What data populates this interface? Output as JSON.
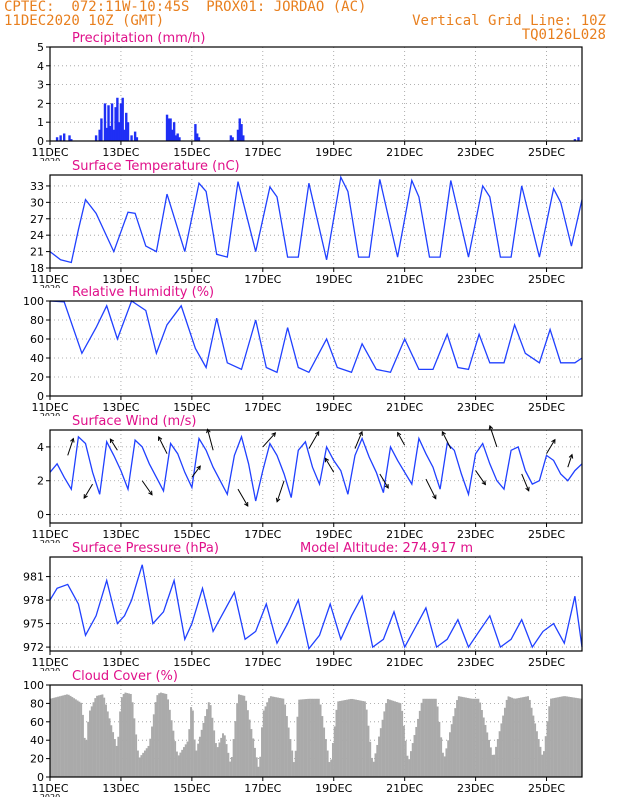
{
  "header": {
    "line1_left": "CPTEC:  072:11W-10:45S  PROX01: JORDAO (AC)",
    "line2_left": "11DEC2020 10Z (GMT)",
    "line2_right": "Vertical Grid Line: 10Z",
    "line3_right": "TQ0126L028",
    "color": "#e87f1e"
  },
  "x_axis": {
    "ticks": [
      "11DEC",
      "13DEC",
      "15DEC",
      "17DEC",
      "19DEC",
      "21DEC",
      "23DEC",
      "25DEC"
    ],
    "tick_days": [
      0,
      2,
      4,
      6,
      8,
      10,
      12,
      14
    ],
    "year_label": "2020",
    "range_days": [
      0,
      15
    ]
  },
  "panels": [
    {
      "id": "precip",
      "title": "Precipitation (mm/h)",
      "type": "bar",
      "ylim": [
        0,
        5
      ],
      "yticks": [
        0,
        1,
        2,
        3,
        4,
        5
      ],
      "color": "#1f2ff5"
    },
    {
      "id": "temp",
      "title": "Surface Temperature (nC)",
      "type": "line",
      "ylim": [
        18,
        35
      ],
      "yticks": [
        18,
        21,
        24,
        27,
        30,
        33
      ],
      "color": "#2040ff"
    },
    {
      "id": "rh",
      "title": "Relative Humidity (%)",
      "type": "line",
      "ylim": [
        0,
        100
      ],
      "yticks": [
        0,
        20,
        40,
        60,
        80,
        100
      ],
      "color": "#2040ff"
    },
    {
      "id": "wind",
      "title": "Surface Wind (m/s)",
      "type": "line",
      "ylim": [
        -0.5,
        5
      ],
      "yticks": [
        0,
        2,
        4
      ],
      "color": "#2040ff"
    },
    {
      "id": "pres",
      "title": "Surface Pressure (hPa)",
      "extra": "Model Altitude: 274.917 m",
      "type": "line",
      "ylim": [
        971.5,
        983.5
      ],
      "yticks": [
        972,
        975,
        978,
        981
      ],
      "color": "#2040ff"
    },
    {
      "id": "cloud",
      "title": "Cloud Cover (%)",
      "type": "area",
      "ylim": [
        0,
        100
      ],
      "yticks": [
        0,
        20,
        40,
        60,
        80,
        100
      ],
      "color": "#aaaaaa"
    }
  ],
  "chart_data": [
    {
      "type": "bar",
      "title": "Precipitation (mm/h)",
      "x_unit": "days since 11DEC2020 10Z",
      "x": [
        0.2,
        0.3,
        0.4,
        0.55,
        0.6,
        1.3,
        1.4,
        1.45,
        1.55,
        1.6,
        1.65,
        1.7,
        1.75,
        1.8,
        1.85,
        1.9,
        1.95,
        2.0,
        2.05,
        2.1,
        2.15,
        2.2,
        2.3,
        2.4,
        2.45,
        3.3,
        3.35,
        3.4,
        3.45,
        3.5,
        3.55,
        3.6,
        3.65,
        4.1,
        4.15,
        4.2,
        5.1,
        5.15,
        5.3,
        5.35,
        5.4,
        5.45,
        14.8,
        14.9
      ],
      "values": [
        0.2,
        0.3,
        0.4,
        0.3,
        0.1,
        0.3,
        0.6,
        1.2,
        2.0,
        0.7,
        1.9,
        0.8,
        2.0,
        0.6,
        1.8,
        2.3,
        1.0,
        2.0,
        2.3,
        0.6,
        1.5,
        1.0,
        0.3,
        0.5,
        0.2,
        1.4,
        1.2,
        1.2,
        0.6,
        1.0,
        0.3,
        0.4,
        0.2,
        0.9,
        0.4,
        0.2,
        0.3,
        0.2,
        0.6,
        1.2,
        0.9,
        0.3,
        0.1,
        0.2
      ],
      "ylim": [
        0,
        5
      ]
    },
    {
      "type": "line",
      "title": "Surface Temperature (nC)",
      "x": [
        0,
        0.3,
        0.6,
        0.8,
        1.0,
        1.3,
        1.8,
        2.2,
        2.4,
        2.7,
        3.0,
        3.3,
        3.8,
        4.2,
        4.4,
        4.7,
        5.0,
        5.3,
        5.8,
        6.2,
        6.4,
        6.7,
        7.0,
        7.3,
        7.8,
        8.2,
        8.4,
        8.7,
        9.0,
        9.3,
        9.8,
        10.2,
        10.4,
        10.7,
        11.0,
        11.3,
        11.8,
        12.2,
        12.4,
        12.7,
        13.0,
        13.3,
        13.8,
        14.2,
        14.4,
        14.7,
        15.0
      ],
      "values": [
        21,
        19.5,
        19,
        25,
        30.5,
        28,
        21,
        28.2,
        28,
        22,
        21,
        31.5,
        21,
        33.5,
        32,
        20.5,
        20,
        33.8,
        21,
        32.8,
        31,
        20,
        20,
        33.5,
        19.5,
        34.6,
        32,
        20,
        20,
        34.2,
        20,
        34,
        31,
        20,
        20,
        34,
        20,
        33,
        31,
        20,
        20,
        33,
        20,
        32.5,
        30,
        22,
        30.5
      ],
      "ylim": [
        18,
        35
      ]
    },
    {
      "type": "line",
      "title": "Relative Humidity (%)",
      "x": [
        0,
        0.4,
        0.9,
        1.3,
        1.6,
        1.9,
        2.3,
        2.7,
        3.0,
        3.3,
        3.7,
        4.1,
        4.4,
        4.7,
        5.0,
        5.4,
        5.8,
        6.1,
        6.4,
        6.7,
        7.0,
        7.3,
        7.8,
        8.1,
        8.5,
        8.8,
        9.2,
        9.6,
        10.0,
        10.4,
        10.8,
        11.2,
        11.5,
        11.8,
        12.1,
        12.4,
        12.8,
        13.1,
        13.4,
        13.8,
        14.1,
        14.4,
        14.8,
        15.0
      ],
      "values": [
        100,
        99,
        45,
        72,
        95,
        60,
        100,
        90,
        45,
        75,
        95,
        50,
        30,
        82,
        35,
        28,
        80,
        30,
        25,
        72,
        30,
        25,
        60,
        30,
        25,
        55,
        28,
        25,
        60,
        28,
        28,
        65,
        30,
        28,
        65,
        35,
        35,
        75,
        45,
        35,
        70,
        35,
        35,
        40
      ],
      "ylim": [
        0,
        100
      ]
    },
    {
      "type": "line",
      "title": "Surface Wind (m/s)",
      "x": [
        0,
        0.2,
        0.4,
        0.6,
        0.8,
        1.0,
        1.2,
        1.4,
        1.6,
        1.8,
        2.0,
        2.2,
        2.4,
        2.6,
        2.8,
        3.0,
        3.2,
        3.4,
        3.6,
        3.8,
        4.0,
        4.2,
        4.4,
        4.6,
        4.8,
        5.0,
        5.2,
        5.4,
        5.6,
        5.8,
        6.0,
        6.2,
        6.4,
        6.6,
        6.8,
        7.0,
        7.2,
        7.4,
        7.6,
        7.8,
        8.0,
        8.2,
        8.4,
        8.6,
        8.8,
        9.0,
        9.2,
        9.4,
        9.6,
        9.8,
        10.0,
        10.2,
        10.4,
        10.6,
        10.8,
        11.0,
        11.2,
        11.4,
        11.6,
        11.8,
        12.0,
        12.2,
        12.4,
        12.6,
        12.8,
        13.0,
        13.2,
        13.4,
        13.6,
        13.8,
        14.0,
        14.2,
        14.4,
        14.6,
        14.8,
        15.0
      ],
      "values": [
        2.5,
        3.0,
        2.2,
        1.5,
        4.6,
        4.2,
        2.5,
        1.2,
        4.3,
        3.5,
        2.6,
        1.5,
        4.4,
        4.0,
        3.0,
        2.2,
        1.4,
        4.2,
        3.6,
        2.5,
        1.6,
        4.5,
        3.8,
        2.8,
        2.0,
        1.2,
        3.5,
        4.6,
        3.0,
        0.8,
        2.6,
        4.2,
        3.5,
        2.4,
        1.0,
        3.8,
        4.3,
        2.8,
        1.8,
        4.0,
        3.2,
        2.6,
        1.2,
        3.5,
        4.5,
        3.4,
        2.5,
        1.3,
        4.0,
        3.2,
        2.5,
        1.8,
        4.5,
        3.6,
        2.8,
        1.5,
        4.2,
        3.8,
        2.4,
        1.2,
        3.6,
        4.2,
        3.0,
        2.0,
        1.5,
        3.8,
        4.0,
        2.6,
        1.8,
        2.0,
        3.5,
        3.2,
        2.4,
        2.0,
        2.6,
        3.0
      ],
      "ylim": [
        -0.5,
        5
      ],
      "arrows": {
        "x": [
          0.5,
          1.2,
          1.9,
          2.6,
          3.3,
          4.0,
          4.6,
          5.3,
          6.0,
          6.6,
          7.3,
          8.0,
          8.6,
          9.3,
          10.0,
          10.6,
          11.3,
          12.0,
          12.6,
          13.3,
          14.0,
          14.6
        ],
        "y": [
          3.5,
          1.8,
          3.8,
          2.0,
          3.6,
          2.2,
          3.8,
          1.5,
          4.0,
          2.0,
          3.9,
          2.5,
          3.9,
          2.4,
          4.1,
          2.1,
          3.9,
          2.6,
          4.0,
          2.4,
          3.6,
          2.8
        ],
        "u": [
          0.4,
          -0.6,
          -0.5,
          0.7,
          -0.6,
          0.6,
          -0.4,
          0.7,
          0.9,
          -0.5,
          0.7,
          -0.6,
          0.5,
          0.6,
          -0.5,
          0.7,
          -0.6,
          0.7,
          -0.5,
          0.5,
          0.6,
          0.3
        ],
        "v": [
          1.2,
          -1.0,
          0.8,
          -1.0,
          1.2,
          0.8,
          1.5,
          -1.2,
          1.0,
          -1.5,
          1.2,
          1.0,
          1.2,
          -1.0,
          0.9,
          -1.4,
          1.2,
          -1.0,
          1.5,
          -1.2,
          1.0,
          0.9
        ]
      }
    },
    {
      "type": "line",
      "title": "Surface Pressure (hPa)",
      "x": [
        0,
        0.2,
        0.5,
        0.8,
        1.0,
        1.3,
        1.6,
        1.9,
        2.1,
        2.3,
        2.6,
        2.9,
        3.2,
        3.5,
        3.8,
        4.0,
        4.3,
        4.6,
        4.9,
        5.2,
        5.5,
        5.8,
        6.1,
        6.4,
        6.7,
        7.0,
        7.3,
        7.6,
        7.9,
        8.2,
        8.5,
        8.8,
        9.1,
        9.4,
        9.7,
        10.0,
        10.3,
        10.6,
        10.9,
        11.2,
        11.5,
        11.8,
        12.1,
        12.4,
        12.7,
        13.0,
        13.3,
        13.6,
        13.9,
        14.2,
        14.5,
        14.8,
        15.0
      ],
      "values": [
        978,
        979.5,
        980,
        977.5,
        973.5,
        976,
        980.5,
        975,
        976,
        978,
        982.5,
        975,
        976.5,
        980.5,
        973,
        975,
        979.5,
        974,
        976.5,
        979,
        973,
        974,
        977.5,
        972.5,
        975,
        978,
        971.8,
        973.5,
        977.5,
        973,
        976,
        978.5,
        972,
        973,
        976.5,
        972,
        974.5,
        977,
        972,
        973,
        975.5,
        972,
        974,
        976,
        972,
        973,
        975.5,
        972,
        974,
        975,
        972.5,
        978.5,
        972
      ],
      "ylim": [
        971.5,
        983.5
      ]
    },
    {
      "type": "area",
      "title": "Cloud Cover (%)",
      "ylim": [
        0,
        100
      ],
      "x": [
        0,
        0.5,
        0.9,
        1.0,
        1.1,
        1.3,
        1.5,
        1.9,
        2.0,
        2.1,
        2.3,
        2.5,
        2.8,
        3.0,
        3.1,
        3.3,
        3.6,
        3.9,
        4.0,
        4.1,
        4.5,
        4.7,
        4.9,
        5.1,
        5.3,
        5.5,
        5.9,
        6.0,
        6.2,
        6.6,
        6.9,
        7.0,
        7.3,
        7.6,
        7.9,
        8.1,
        8.5,
        8.9,
        9.1,
        9.5,
        9.9,
        10.1,
        10.5,
        10.9,
        11.1,
        11.5,
        11.9,
        12.1,
        12.5,
        12.9,
        13.1,
        13.5,
        13.9,
        14.1,
        14.5,
        15.0
      ],
      "values": [
        85,
        90,
        80,
        30,
        70,
        88,
        90,
        30,
        85,
        92,
        90,
        20,
        35,
        88,
        92,
        90,
        22,
        40,
        88,
        25,
        85,
        30,
        50,
        12,
        90,
        88,
        6,
        70,
        88,
        85,
        10,
        84,
        85,
        85,
        10,
        82,
        85,
        82,
        12,
        85,
        80,
        15,
        85,
        85,
        18,
        88,
        85,
        85,
        20,
        88,
        85,
        88,
        20,
        85,
        88,
        85
      ]
    }
  ]
}
